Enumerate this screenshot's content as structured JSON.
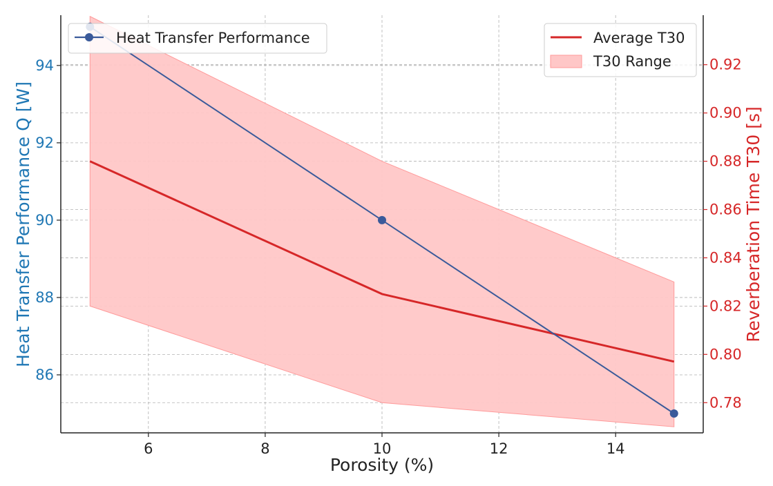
{
  "chart_data": {
    "type": "line",
    "title": "",
    "xlabel": "Porosity (%)",
    "ylabel_left": "Heat Transfer Performance Q [W]",
    "ylabel_right": "Reverberation Time T30 [s]",
    "x": [
      5,
      10,
      15
    ],
    "xlim": [
      4.5,
      15.5
    ],
    "ylim_left": [
      84.5,
      95.3
    ],
    "ylim_right": [
      0.7675,
      0.9405
    ],
    "x_ticks": [
      "6",
      "8",
      "10",
      "12",
      "14"
    ],
    "y_ticks_left": [
      "86",
      "88",
      "90",
      "92",
      "94"
    ],
    "y_ticks_right": [
      "0.78",
      "0.80",
      "0.82",
      "0.84",
      "0.86",
      "0.88",
      "0.90",
      "0.92"
    ],
    "grid": true,
    "series": [
      {
        "name": "Heat Transfer Performance",
        "axis": "left",
        "values": [
          95,
          90,
          85
        ],
        "color": "#3a5a9a",
        "marker": "circle"
      },
      {
        "name": "Average T30",
        "axis": "right",
        "values": [
          0.88,
          0.825,
          0.797
        ],
        "color": "#d62728"
      },
      {
        "name": "T30 Range",
        "axis": "right",
        "type": "area_band",
        "lower": [
          0.82,
          0.78,
          0.77
        ],
        "upper": [
          0.94,
          0.88,
          0.83
        ],
        "color": "#ff9a9a"
      }
    ],
    "legend_left_position": "upper-left",
    "legend_right_position": "upper-right",
    "colors": {
      "left_axis": "#1f77b4",
      "right_axis": "#d62728",
      "grid": "#b0b0b0",
      "band": "#ffc7c7"
    }
  }
}
